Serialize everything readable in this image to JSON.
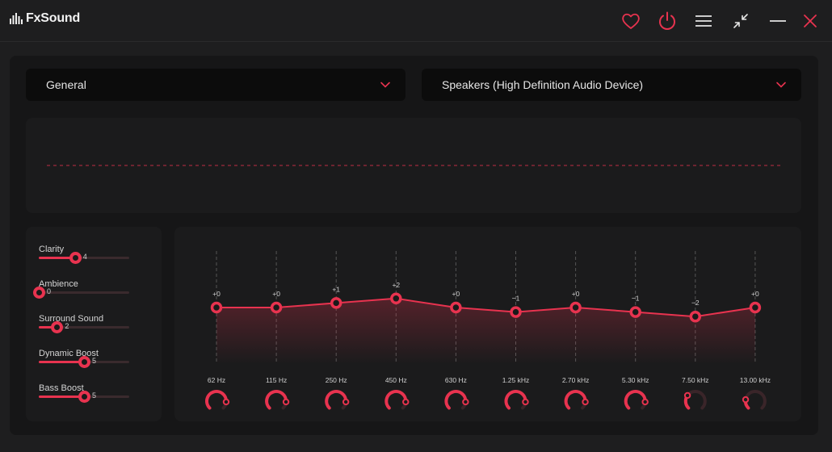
{
  "app": {
    "name": "FxSound"
  },
  "titlebar": {
    "icons": [
      "heart-icon",
      "power-icon",
      "menu-icon",
      "minimize-view-icon",
      "minimize-icon",
      "close-icon"
    ]
  },
  "preset": {
    "selected": "General"
  },
  "output_device": {
    "selected": "Speakers (High Definition Audio Device)"
  },
  "colors": {
    "accent": "#e8334f",
    "background": "#1e1e1f",
    "panel": "#1b1b1c",
    "dropdown": "#0c0c0c"
  },
  "effects": [
    {
      "label": "Clarity",
      "value": 4,
      "max": 10
    },
    {
      "label": "Ambience",
      "value": 0,
      "max": 10
    },
    {
      "label": "Surround Sound",
      "value": 2,
      "max": 10
    },
    {
      "label": "Dynamic Boost",
      "value": 5,
      "max": 10
    },
    {
      "label": "Bass Boost",
      "value": 5,
      "max": 10
    }
  ],
  "eq": {
    "gain_range": [
      -12,
      12
    ],
    "bands": [
      {
        "freq": "62 Hz",
        "gain": 0,
        "gain_label": "+0",
        "knob": 0.85
      },
      {
        "freq": "115 Hz",
        "gain": 0,
        "gain_label": "+0",
        "knob": 0.85
      },
      {
        "freq": "250 Hz",
        "gain": 1,
        "gain_label": "+1",
        "knob": 0.85
      },
      {
        "freq": "450 Hz",
        "gain": 2,
        "gain_label": "+2",
        "knob": 0.85
      },
      {
        "freq": "630 Hz",
        "gain": 0,
        "gain_label": "+0",
        "knob": 0.85
      },
      {
        "freq": "1.25 kHz",
        "gain": -1,
        "gain_label": "−1",
        "knob": 0.85
      },
      {
        "freq": "2.70 kHz",
        "gain": 0,
        "gain_label": "+0",
        "knob": 0.85
      },
      {
        "freq": "5.30 kHz",
        "gain": -1,
        "gain_label": "−1",
        "knob": 0.85
      },
      {
        "freq": "7.50 kHz",
        "gain": -2,
        "gain_label": "−2",
        "knob": 0.3
      },
      {
        "freq": "13.00 kHz",
        "gain": 0,
        "gain_label": "+0",
        "knob": 0.2
      }
    ]
  }
}
